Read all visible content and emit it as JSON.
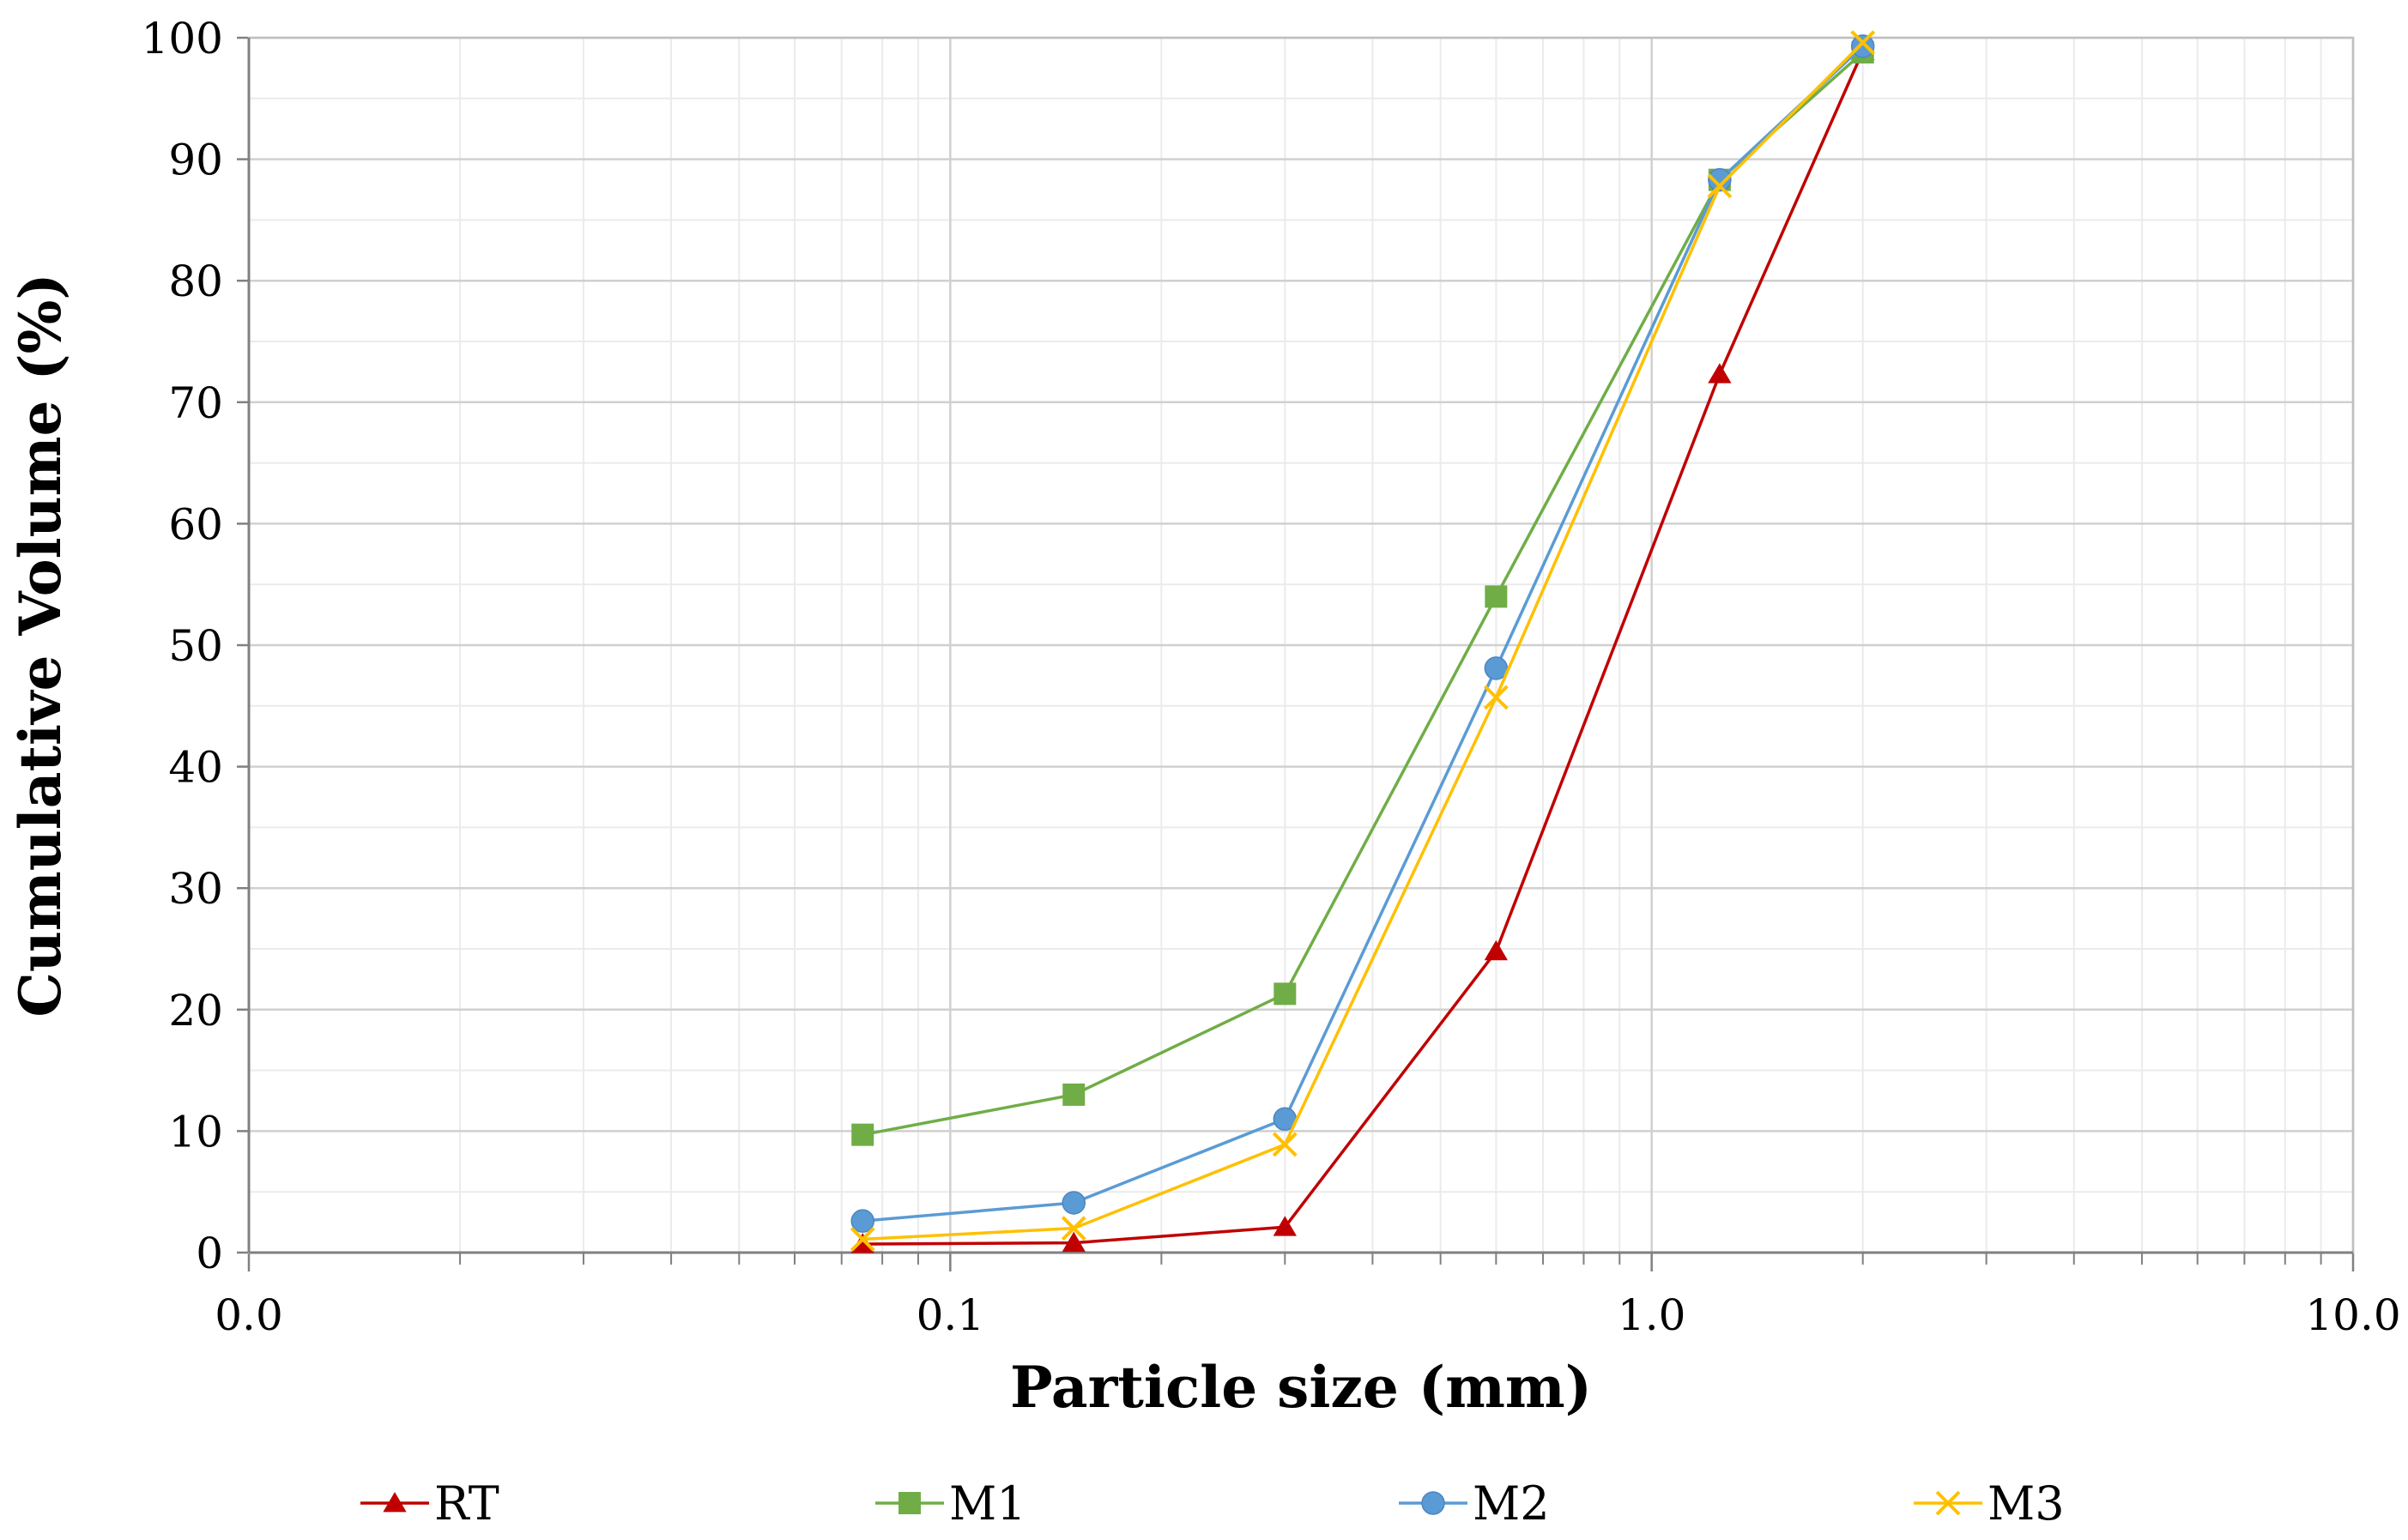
{
  "chart_data": {
    "type": "line",
    "title": "",
    "xlabel": "Particle size (mm)",
    "ylabel": "Cumulative Volume (%)",
    "xscale": "log",
    "xlim": [
      0.01,
      10
    ],
    "ylim": [
      0,
      100
    ],
    "x_ticks": [
      0.01,
      0.1,
      1,
      10
    ],
    "x_tick_labels": [
      "0.0",
      "0.1",
      "1.0",
      "10.0"
    ],
    "y_ticks": [
      0,
      10,
      20,
      30,
      40,
      50,
      60,
      70,
      80,
      90,
      100
    ],
    "y_tick_labels": [
      "0",
      "10",
      "20",
      "30",
      "40",
      "50",
      "60",
      "70",
      "80",
      "90",
      "100"
    ],
    "grid": true,
    "legend_position": "bottom",
    "x": [
      0.075,
      0.15,
      0.3,
      0.6,
      1.25,
      2.0
    ],
    "series": [
      {
        "name": "RT",
        "color": "#C00000",
        "marker": "triangle",
        "values": [
          0.7,
          0.8,
          2.1,
          24.8,
          72.3,
          98.9
        ]
      },
      {
        "name": "M1",
        "color": "#70AD47",
        "marker": "square",
        "values": [
          9.7,
          13.0,
          21.3,
          54.0,
          88.3,
          98.8
        ]
      },
      {
        "name": "M2",
        "color": "#5B9BD5",
        "marker": "circle",
        "values": [
          2.6,
          4.1,
          11.0,
          48.1,
          88.3,
          99.3
        ]
      },
      {
        "name": "M3",
        "color": "#FFC000",
        "marker": "x",
        "values": [
          1.1,
          2.0,
          8.9,
          45.7,
          87.8,
          99.6
        ]
      }
    ]
  }
}
